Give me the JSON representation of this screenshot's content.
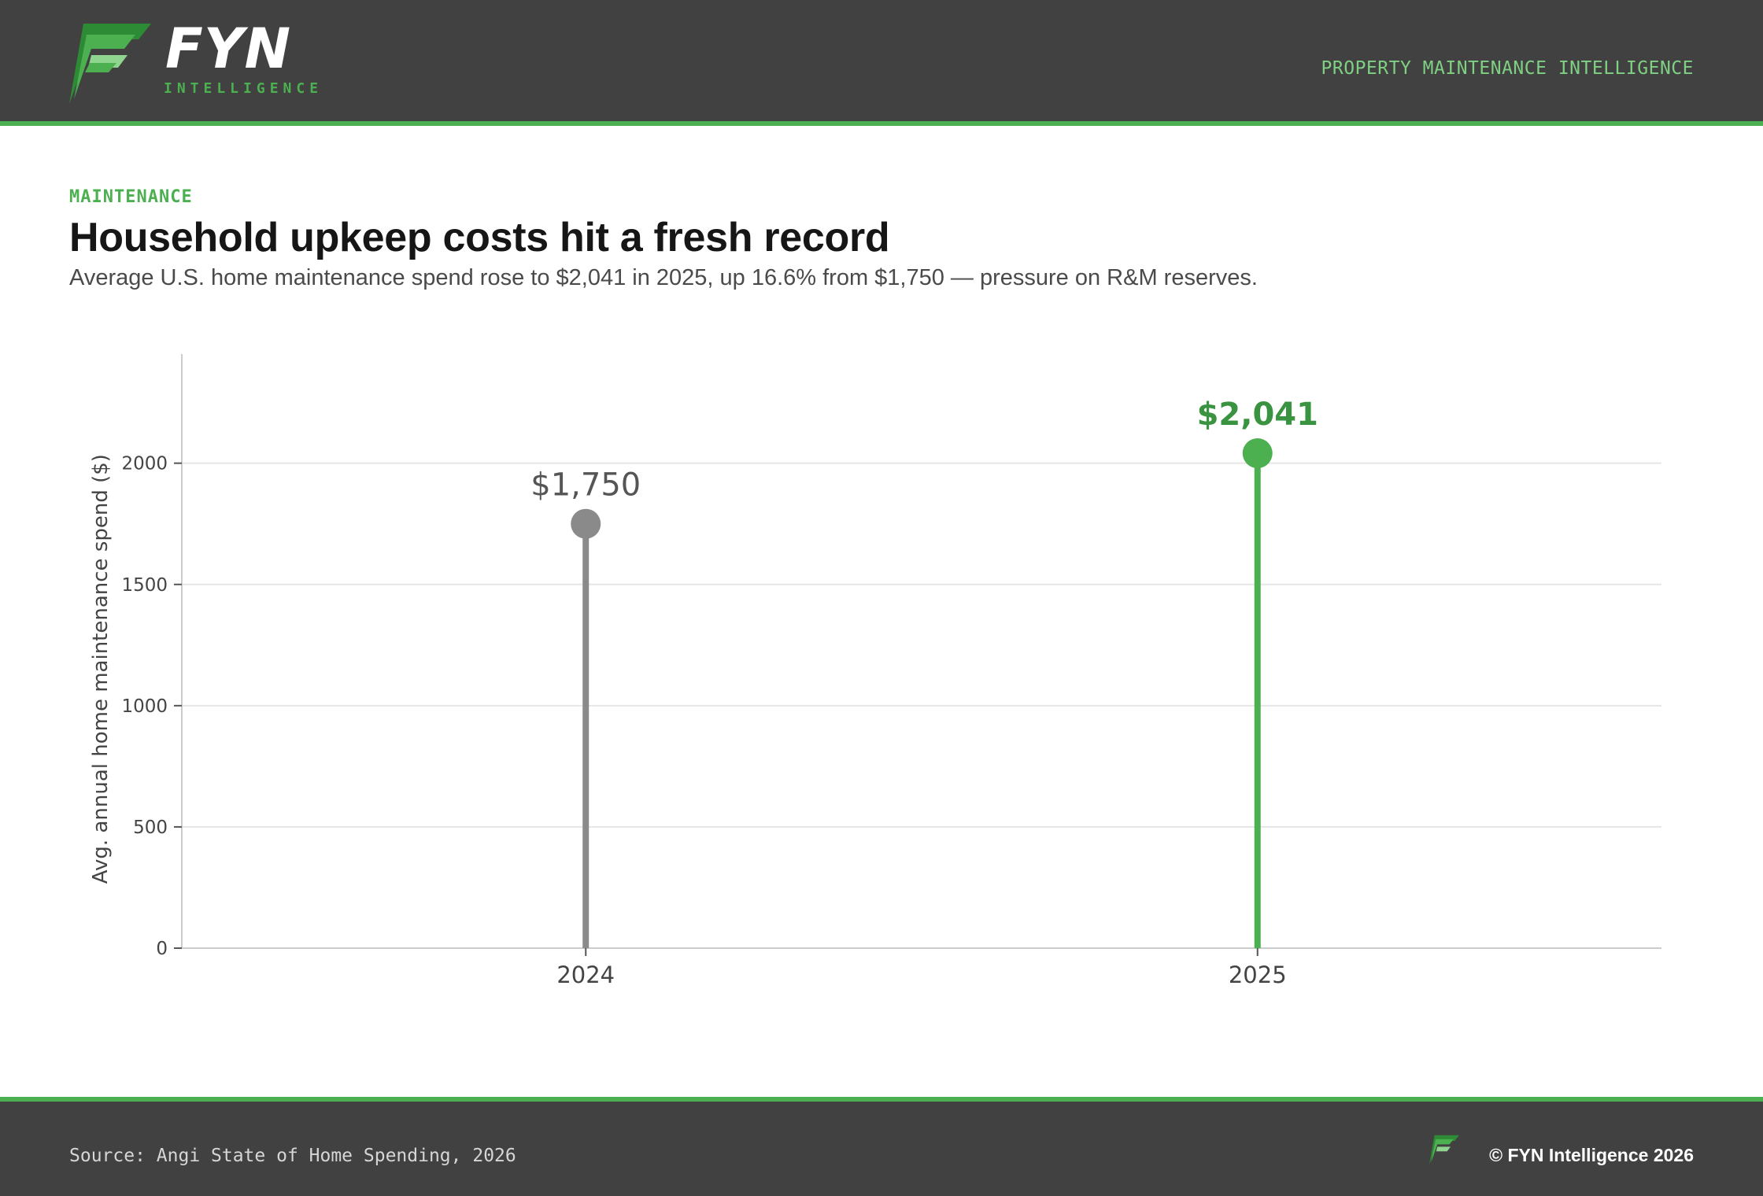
{
  "header": {
    "brand_name": "FYN",
    "brand_sub": "INTELLIGENCE",
    "tagline": "PROPERTY MAINTENANCE INTELLIGENCE",
    "logo_icon": "fyn-leaf-logo-icon"
  },
  "article": {
    "kicker": "MAINTENANCE",
    "title": "Household upkeep costs hit a fresh record",
    "subtitle": "Average U.S. home maintenance spend rose to $2,041 in 2025, up 16.6% from $1,750 — pressure on R&M reserves."
  },
  "chart_data": {
    "type": "lollipop",
    "categories": [
      "2024",
      "2025"
    ],
    "values": [
      1750,
      2041
    ],
    "value_labels": [
      "$1,750",
      "$2,041"
    ],
    "point_colors": [
      "#8a8a8a",
      "#4caf50"
    ],
    "label_colors": [
      "#555555",
      "#3a9340"
    ],
    "ylabel": "Avg. annual home maintenance spend ($)",
    "ylim": [
      0,
      2450
    ],
    "yticks": [
      0,
      500,
      1000,
      1500,
      2000
    ],
    "grid": true,
    "legend": "none"
  },
  "footer": {
    "source": "Source: Angi State of Home Spending, 2026",
    "copyright": "© FYN Intelligence 2026"
  },
  "colors": {
    "accent": "#4caf50",
    "bar_dark": "#414141"
  }
}
